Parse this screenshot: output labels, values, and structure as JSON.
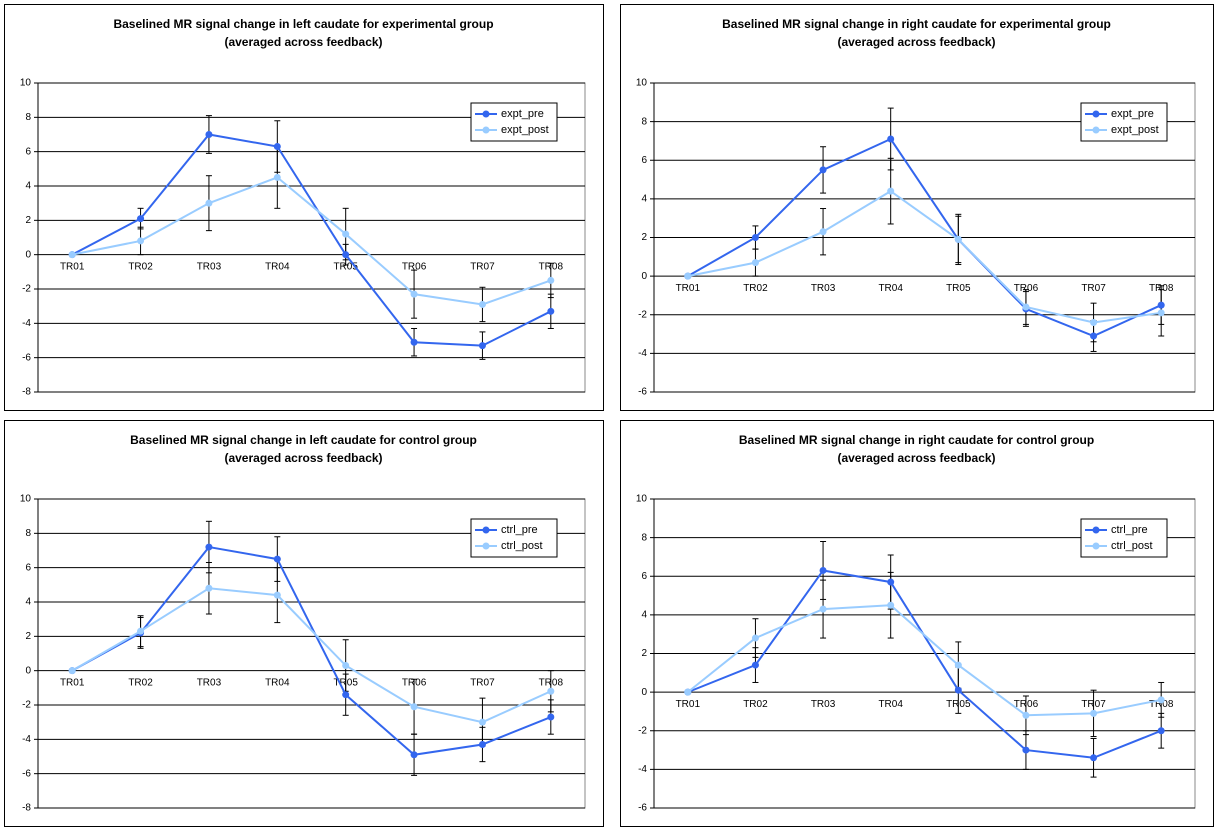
{
  "chart_data": [
    {
      "type": "line",
      "title": "Baselined MR signal change in left caudate for experimental group",
      "subtitle": "(averaged across feedback)",
      "categories": [
        "TR01",
        "TR02",
        "TR03",
        "TR04",
        "TR05",
        "TR06",
        "TR07",
        "TR08"
      ],
      "series": [
        {
          "name": "expt_pre",
          "color": "#3366ee",
          "values": [
            0,
            2.1,
            7.0,
            6.3,
            0.0,
            -5.1,
            -5.3,
            -3.3
          ],
          "errors": [
            0,
            0.6,
            1.1,
            1.5,
            0.6,
            0.8,
            0.8,
            1.0
          ]
        },
        {
          "name": "expt_post",
          "color": "#99ccff",
          "values": [
            0,
            0.8,
            3.0,
            4.5,
            1.2,
            -2.3,
            -2.9,
            -1.5
          ],
          "errors": [
            0,
            0.8,
            1.6,
            1.8,
            1.5,
            1.4,
            1.0,
            1.0
          ]
        }
      ],
      "ylim": [
        -8,
        10
      ],
      "yticks": [
        -8,
        -6,
        -4,
        -2,
        0,
        2,
        4,
        6,
        8,
        10
      ],
      "grid": true,
      "legend": "top-right"
    },
    {
      "type": "line",
      "title": "Baselined MR signal change in right caudate for experimental group",
      "subtitle": "(averaged across feedback)",
      "categories": [
        "TR01",
        "TR02",
        "TR03",
        "TR04",
        "TR05",
        "TR06",
        "TR07",
        "TR08"
      ],
      "series": [
        {
          "name": "expt_pre",
          "color": "#3366ee",
          "values": [
            0,
            2.0,
            5.5,
            7.1,
            1.9,
            -1.7,
            -3.1,
            -1.5
          ],
          "errors": [
            0,
            0.6,
            1.2,
            1.6,
            1.2,
            0.9,
            0.8,
            1.0
          ]
        },
        {
          "name": "expt_post",
          "color": "#99ccff",
          "values": [
            0,
            0.7,
            2.3,
            4.4,
            1.9,
            -1.6,
            -2.4,
            -1.9
          ],
          "errors": [
            0,
            0.7,
            1.2,
            1.7,
            1.3,
            0.9,
            1.0,
            1.2
          ]
        }
      ],
      "ylim": [
        -6,
        10
      ],
      "yticks": [
        -6,
        -4,
        -2,
        0,
        2,
        4,
        6,
        8,
        10
      ],
      "grid": true,
      "legend": "top-right"
    },
    {
      "type": "line",
      "title": "Baselined MR signal change in left caudate for control group",
      "subtitle": "(averaged across feedback)",
      "categories": [
        "TR01",
        "TR02",
        "TR03",
        "TR04",
        "TR05",
        "TR06",
        "TR07",
        "TR08"
      ],
      "series": [
        {
          "name": "ctrl_pre",
          "color": "#3366ee",
          "values": [
            0,
            2.2,
            7.2,
            6.5,
            -1.4,
            -4.9,
            -4.3,
            -2.7
          ],
          "errors": [
            0,
            0.9,
            1.5,
            1.3,
            1.2,
            1.2,
            1.0,
            1.0
          ]
        },
        {
          "name": "ctrl_post",
          "color": "#99ccff",
          "values": [
            0,
            2.3,
            4.8,
            4.4,
            0.3,
            -2.1,
            -3.0,
            -1.2
          ],
          "errors": [
            0,
            0.9,
            1.5,
            1.6,
            1.5,
            1.6,
            1.4,
            1.2
          ]
        }
      ],
      "ylim": [
        -8,
        10
      ],
      "yticks": [
        -8,
        -6,
        -4,
        -2,
        0,
        2,
        4,
        6,
        8,
        10
      ],
      "grid": true,
      "legend": "top-right"
    },
    {
      "type": "line",
      "title": "Baselined MR signal change in right caudate for control group",
      "subtitle": "(averaged across feedback)",
      "categories": [
        "TR01",
        "TR02",
        "TR03",
        "TR04",
        "TR05",
        "TR06",
        "TR07",
        "TR08"
      ],
      "series": [
        {
          "name": "ctrl_pre",
          "color": "#3366ee",
          "values": [
            0,
            1.4,
            6.3,
            5.7,
            0.1,
            -3.0,
            -3.4,
            -2.0
          ],
          "errors": [
            0,
            0.9,
            1.5,
            1.4,
            1.2,
            1.0,
            1.0,
            0.9
          ]
        },
        {
          "name": "ctrl_post",
          "color": "#99ccff",
          "values": [
            0,
            2.8,
            4.3,
            4.5,
            1.4,
            -1.2,
            -1.1,
            -0.4
          ],
          "errors": [
            0,
            1.0,
            1.5,
            1.7,
            1.2,
            1.0,
            1.2,
            0.9
          ]
        }
      ],
      "ylim": [
        -6,
        10
      ],
      "yticks": [
        -6,
        -4,
        -2,
        0,
        2,
        4,
        6,
        8,
        10
      ],
      "grid": true,
      "legend": "top-right"
    }
  ]
}
